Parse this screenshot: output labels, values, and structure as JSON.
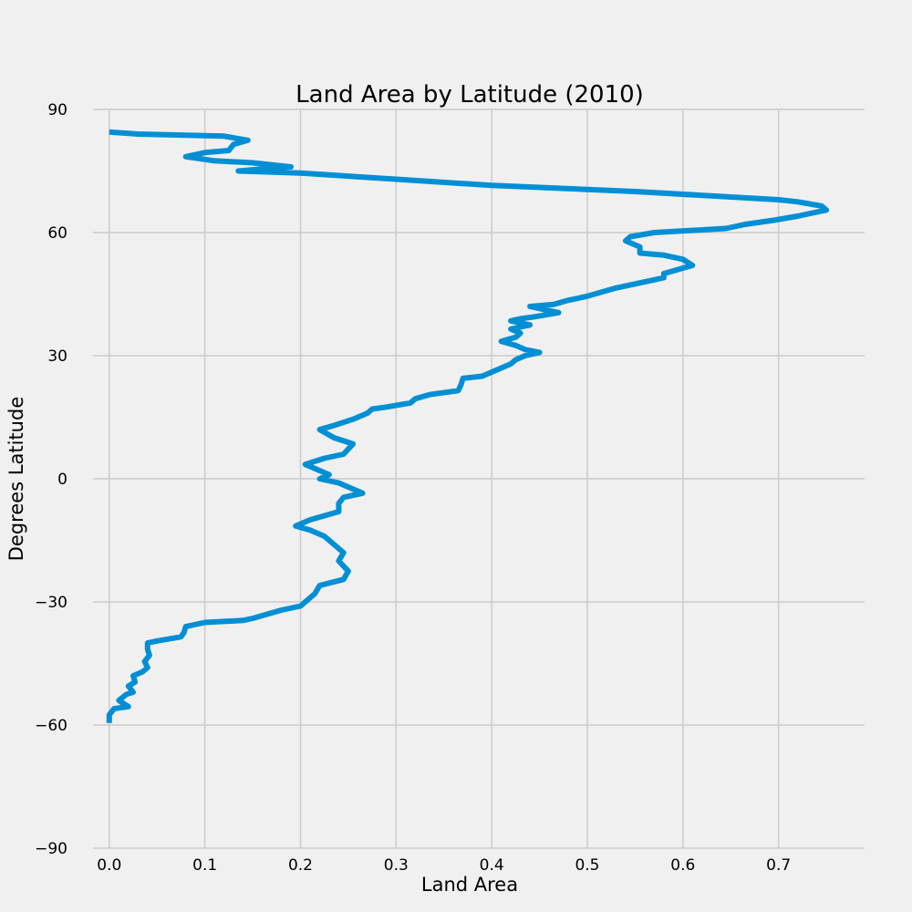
{
  "chart_data": {
    "type": "line",
    "title": "Land Area by Latitude (2010)",
    "xlabel": "Land Area",
    "ylabel": "Degrees Latitude",
    "xlim": [
      -0.017,
      0.79
    ],
    "ylim": [
      -90,
      90
    ],
    "xticks": [
      0.0,
      0.1,
      0.2,
      0.3,
      0.4,
      0.5,
      0.6,
      0.7
    ],
    "xtick_labels": [
      "0.0",
      "0.1",
      "0.2",
      "0.3",
      "0.4",
      "0.5",
      "0.6",
      "0.7"
    ],
    "yticks": [
      -90,
      -60,
      -30,
      0,
      30,
      60,
      90
    ],
    "ytick_labels": [
      "−90",
      "−60",
      "−30",
      "0",
      "30",
      "60",
      "90"
    ],
    "grid": true,
    "colors": {
      "line": "#008fd5",
      "grid": "#cbcbcb",
      "background": "#f0f0f0"
    },
    "series": [
      {
        "points": [
          [
            0.0,
            -59.5
          ],
          [
            0.0,
            -57.5
          ],
          [
            0.005,
            -56.0
          ],
          [
            0.02,
            -55.5
          ],
          [
            0.01,
            -54.0
          ],
          [
            0.018,
            -52.5
          ],
          [
            0.025,
            -52.0
          ],
          [
            0.02,
            -50.5
          ],
          [
            0.027,
            -49.5
          ],
          [
            0.025,
            -48.0
          ],
          [
            0.035,
            -47.0
          ],
          [
            0.04,
            -46.0
          ],
          [
            0.037,
            -44.5
          ],
          [
            0.042,
            -43.0
          ],
          [
            0.04,
            -41.5
          ],
          [
            0.04,
            -40.0
          ],
          [
            0.05,
            -39.5
          ],
          [
            0.075,
            -38.5
          ],
          [
            0.078,
            -37.5
          ],
          [
            0.08,
            -36.0
          ],
          [
            0.1,
            -35.0
          ],
          [
            0.14,
            -34.5
          ],
          [
            0.15,
            -34.0
          ],
          [
            0.18,
            -32.0
          ],
          [
            0.2,
            -31.0
          ],
          [
            0.215,
            -28.0
          ],
          [
            0.22,
            -26.0
          ],
          [
            0.245,
            -24.5
          ],
          [
            0.25,
            -22.5
          ],
          [
            0.24,
            -20.0
          ],
          [
            0.245,
            -18.0
          ],
          [
            0.235,
            -16.0
          ],
          [
            0.225,
            -14.0
          ],
          [
            0.21,
            -12.5
          ],
          [
            0.195,
            -11.5
          ],
          [
            0.21,
            -10.0
          ],
          [
            0.24,
            -8.0
          ],
          [
            0.24,
            -6.0
          ],
          [
            0.245,
            -4.5
          ],
          [
            0.265,
            -3.5
          ],
          [
            0.24,
            -1.0
          ],
          [
            0.22,
            0.0
          ],
          [
            0.23,
            1.0
          ],
          [
            0.205,
            3.5
          ],
          [
            0.225,
            5.0
          ],
          [
            0.245,
            6.0
          ],
          [
            0.255,
            8.5
          ],
          [
            0.235,
            10.0
          ],
          [
            0.22,
            12.0
          ],
          [
            0.235,
            13.0
          ],
          [
            0.255,
            14.5
          ],
          [
            0.27,
            16.0
          ],
          [
            0.275,
            17.0
          ],
          [
            0.29,
            17.5
          ],
          [
            0.315,
            18.5
          ],
          [
            0.32,
            19.5
          ],
          [
            0.335,
            20.5
          ],
          [
            0.365,
            21.5
          ],
          [
            0.368,
            23.0
          ],
          [
            0.37,
            24.5
          ],
          [
            0.39,
            25.0
          ],
          [
            0.4,
            26.0
          ],
          [
            0.41,
            27.0
          ],
          [
            0.42,
            28.0
          ],
          [
            0.425,
            29.0
          ],
          [
            0.435,
            30.0
          ],
          [
            0.45,
            30.8
          ],
          [
            0.435,
            31.5
          ],
          [
            0.425,
            32.5
          ],
          [
            0.41,
            33.5
          ],
          [
            0.425,
            34.5
          ],
          [
            0.43,
            35.5
          ],
          [
            0.42,
            36.5
          ],
          [
            0.44,
            37.5
          ],
          [
            0.42,
            38.5
          ],
          [
            0.43,
            39.0
          ],
          [
            0.445,
            39.5
          ],
          [
            0.47,
            40.5
          ],
          [
            0.45,
            41.5
          ],
          [
            0.44,
            42.0
          ],
          [
            0.465,
            42.5
          ],
          [
            0.48,
            43.5
          ],
          [
            0.5,
            44.5
          ],
          [
            0.515,
            45.5
          ],
          [
            0.53,
            46.5
          ],
          [
            0.55,
            47.5
          ],
          [
            0.57,
            48.5
          ],
          [
            0.58,
            49.0
          ],
          [
            0.58,
            50.0
          ],
          [
            0.595,
            51.0
          ],
          [
            0.61,
            52.0
          ],
          [
            0.6,
            53.5
          ],
          [
            0.58,
            54.5
          ],
          [
            0.555,
            55.0
          ],
          [
            0.555,
            56.5
          ],
          [
            0.54,
            58.0
          ],
          [
            0.545,
            59.0
          ],
          [
            0.57,
            60.0
          ],
          [
            0.645,
            61.0
          ],
          [
            0.665,
            62.0
          ],
          [
            0.695,
            63.0
          ],
          [
            0.72,
            64.0
          ],
          [
            0.75,
            65.5
          ],
          [
            0.745,
            66.5
          ],
          [
            0.72,
            67.5
          ],
          [
            0.7,
            68.0
          ],
          [
            0.55,
            70.0
          ],
          [
            0.4,
            71.5
          ],
          [
            0.3,
            73.0
          ],
          [
            0.2,
            74.5
          ],
          [
            0.135,
            75.0
          ],
          [
            0.16,
            75.5
          ],
          [
            0.19,
            76.0
          ],
          [
            0.15,
            77.0
          ],
          [
            0.11,
            77.5
          ],
          [
            0.08,
            78.5
          ],
          [
            0.1,
            79.5
          ],
          [
            0.125,
            80.0
          ],
          [
            0.13,
            81.5
          ],
          [
            0.145,
            82.5
          ],
          [
            0.12,
            83.5
          ],
          [
            0.03,
            84.0
          ],
          [
            0.0,
            84.5
          ]
        ]
      }
    ]
  }
}
